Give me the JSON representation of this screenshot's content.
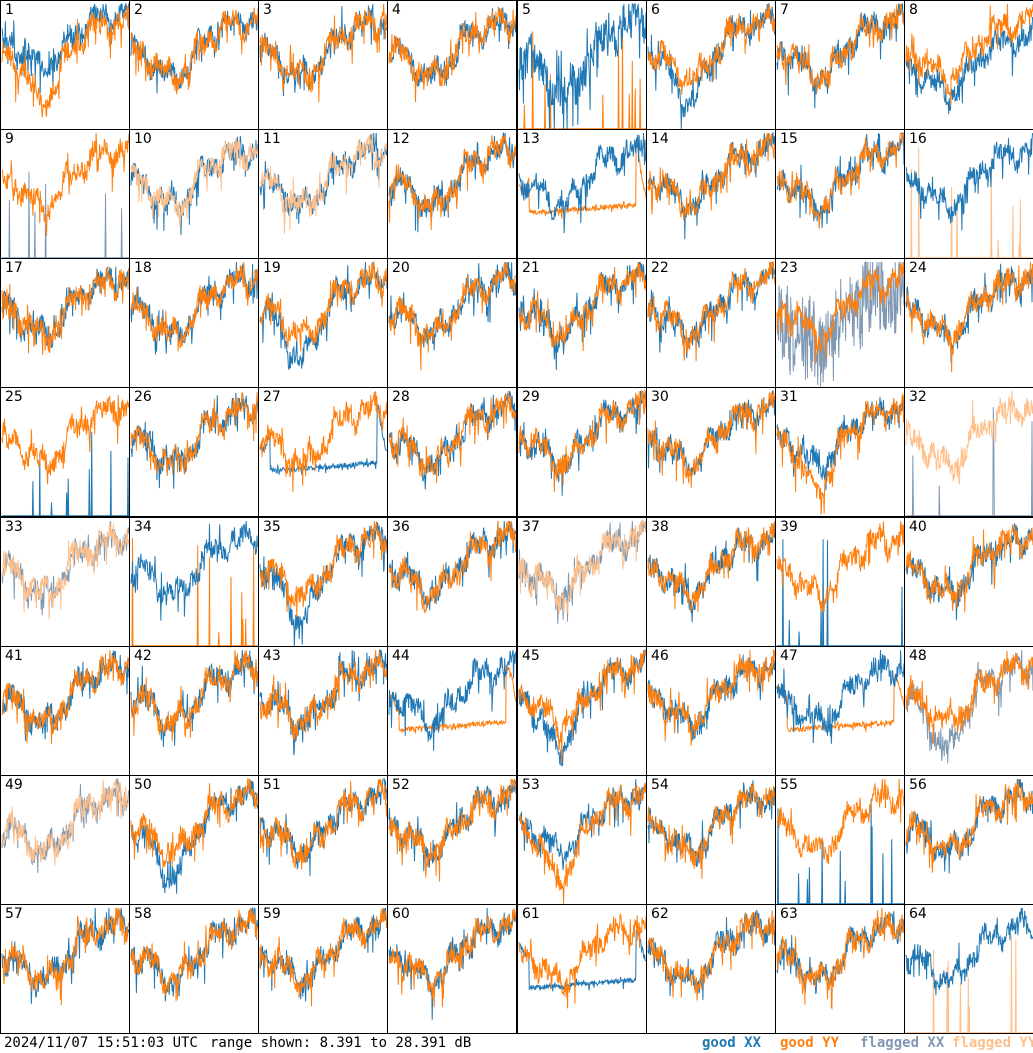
{
  "timestamp": "2024/11/07 15:51:03 UTC",
  "range_text": "range shown: 8.391 to 28.391 dB",
  "legend": [
    {
      "label": "good XX",
      "color": "#1f77b4"
    },
    {
      "label": "good YY",
      "color": "#ff7f0e"
    },
    {
      "label": "flagged XX",
      "color": "#7f99b4"
    },
    {
      "label": "flagged YY",
      "color": "#ffbf8a"
    }
  ],
  "chart_data": {
    "type": "line",
    "ylim": [
      8.391,
      28.391
    ],
    "yunit": "dB",
    "grid": false,
    "legend_placement": "bottom-right",
    "panels": [
      {
        "id": "1",
        "xx": "good",
        "yy": "good",
        "xx_shape": "high",
        "yy_shape": "dip"
      },
      {
        "id": "2",
        "xx": "good",
        "yy": "good"
      },
      {
        "id": "3",
        "xx": "good",
        "yy": "good"
      },
      {
        "id": "4",
        "xx": "good",
        "yy": "good"
      },
      {
        "id": "5",
        "xx": "good",
        "yy": "good",
        "xx_shape": "deep",
        "yy_shape": "spikes"
      },
      {
        "id": "6",
        "xx": "good",
        "yy": "good",
        "xx_shape": "dip"
      },
      {
        "id": "7",
        "xx": "good",
        "yy": "good"
      },
      {
        "id": "8",
        "xx": "good",
        "yy": "good",
        "xx_shape": "low"
      },
      {
        "id": "9",
        "xx": "flagged",
        "yy": "good",
        "xx_shape": "spikes"
      },
      {
        "id": "10",
        "xx": "good",
        "yy": "flagged"
      },
      {
        "id": "11",
        "xx": "good",
        "yy": "flagged"
      },
      {
        "id": "12",
        "xx": "good",
        "yy": "good"
      },
      {
        "id": "13",
        "xx": "good",
        "yy": "good",
        "yy_shape": "flat"
      },
      {
        "id": "14",
        "xx": "good",
        "yy": "good"
      },
      {
        "id": "15",
        "xx": "good",
        "yy": "good"
      },
      {
        "id": "16",
        "xx": "good",
        "yy": "flagged",
        "yy_shape": "spikes"
      },
      {
        "id": "17",
        "xx": "good",
        "yy": "good"
      },
      {
        "id": "18",
        "xx": "good",
        "yy": "good"
      },
      {
        "id": "19",
        "xx": "good",
        "yy": "good",
        "xx_shape": "dip"
      },
      {
        "id": "20",
        "xx": "good",
        "yy": "good"
      },
      {
        "id": "21",
        "xx": "good",
        "yy": "good"
      },
      {
        "id": "22",
        "xx": "good",
        "yy": "good"
      },
      {
        "id": "23",
        "xx": "flagged",
        "yy": "good",
        "xx_shape": "noisy"
      },
      {
        "id": "24",
        "xx": "good",
        "yy": "good"
      },
      {
        "id": "25",
        "xx": "good",
        "yy": "good",
        "xx_shape": "spikes"
      },
      {
        "id": "26",
        "xx": "good",
        "yy": "good"
      },
      {
        "id": "27",
        "xx": "good",
        "yy": "good",
        "xx_shape": "flat"
      },
      {
        "id": "28",
        "xx": "good",
        "yy": "good"
      },
      {
        "id": "29",
        "xx": "good",
        "yy": "good"
      },
      {
        "id": "30",
        "xx": "good",
        "yy": "good"
      },
      {
        "id": "31",
        "xx": "good",
        "yy": "good",
        "yy_shape": "dip"
      },
      {
        "id": "32",
        "xx": "flagged",
        "yy": "flagged",
        "xx_shape": "spikes"
      },
      {
        "id": "33",
        "xx": "flagged",
        "yy": "flagged"
      },
      {
        "id": "34",
        "xx": "good",
        "yy": "good",
        "yy_shape": "spikes"
      },
      {
        "id": "35",
        "xx": "good",
        "yy": "good",
        "xx_shape": "dip"
      },
      {
        "id": "36",
        "xx": "good",
        "yy": "good"
      },
      {
        "id": "37",
        "xx": "flagged",
        "yy": "flagged"
      },
      {
        "id": "38",
        "xx": "good",
        "yy": "good"
      },
      {
        "id": "39",
        "xx": "good",
        "yy": "good",
        "xx_shape": "spikes"
      },
      {
        "id": "40",
        "xx": "good",
        "yy": "good"
      },
      {
        "id": "41",
        "xx": "good",
        "yy": "good"
      },
      {
        "id": "42",
        "xx": "good",
        "yy": "good"
      },
      {
        "id": "43",
        "xx": "good",
        "yy": "good"
      },
      {
        "id": "44",
        "xx": "good",
        "yy": "good",
        "yy_shape": "flat"
      },
      {
        "id": "45",
        "xx": "good",
        "yy": "good",
        "xx_shape": "dip"
      },
      {
        "id": "46",
        "xx": "good",
        "yy": "good"
      },
      {
        "id": "47",
        "xx": "good",
        "yy": "good",
        "yy_shape": "flat"
      },
      {
        "id": "48",
        "xx": "flagged",
        "yy": "good",
        "xx_shape": "dip"
      },
      {
        "id": "49",
        "xx": "flagged",
        "yy": "flagged"
      },
      {
        "id": "50",
        "xx": "good",
        "yy": "good",
        "xx_shape": "dip"
      },
      {
        "id": "51",
        "xx": "good",
        "yy": "good"
      },
      {
        "id": "52",
        "xx": "good",
        "yy": "good"
      },
      {
        "id": "53",
        "xx": "good",
        "yy": "good",
        "yy_shape": "dip"
      },
      {
        "id": "54",
        "xx": "good",
        "yy": "good"
      },
      {
        "id": "55",
        "xx": "good",
        "yy": "good",
        "xx_shape": "spikes"
      },
      {
        "id": "56",
        "xx": "good",
        "yy": "good"
      },
      {
        "id": "57",
        "xx": "good",
        "yy": "good"
      },
      {
        "id": "58",
        "xx": "good",
        "yy": "good"
      },
      {
        "id": "59",
        "xx": "good",
        "yy": "good"
      },
      {
        "id": "60",
        "xx": "good",
        "yy": "good"
      },
      {
        "id": "61",
        "xx": "good",
        "yy": "good",
        "xx_shape": "flat"
      },
      {
        "id": "62",
        "xx": "good",
        "yy": "good"
      },
      {
        "id": "63",
        "xx": "good",
        "yy": "good"
      },
      {
        "id": "64",
        "xx": "good",
        "yy": "flagged",
        "yy_shape": "spikes"
      }
    ]
  }
}
